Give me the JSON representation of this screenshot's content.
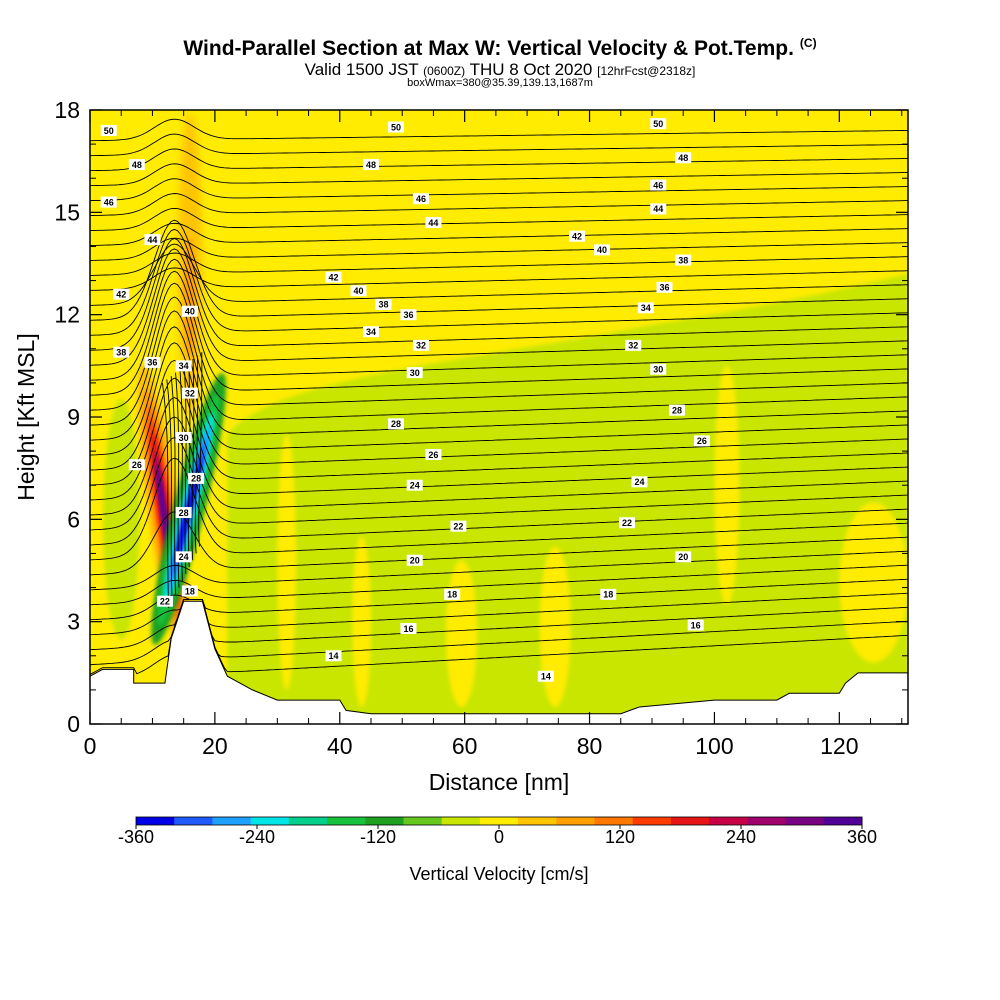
{
  "title": {
    "main": "Wind-Parallel Section at Max W: Vertical Velocity & Pot.Temp.",
    "copyright": "(C)",
    "valid_prefix": "Valid 1500 JST",
    "valid_zulu": "(0600Z)",
    "valid_date": "THU 8 Oct 2020",
    "forecast": "[12hrFcst@2318z]",
    "box_info": "boxWmax=380@35.39,139.13,1687m"
  },
  "chart_data": {
    "type": "heatmap",
    "xlabel": "Distance [nm]",
    "ylabel": "Height [Kft MSL]",
    "xlim": [
      0,
      131
    ],
    "ylim": [
      0,
      18
    ],
    "x_ticks": [
      0,
      20,
      40,
      60,
      80,
      100,
      120
    ],
    "y_ticks": [
      0,
      3,
      6,
      9,
      12,
      15,
      18
    ],
    "colorbar": {
      "label": "Vertical Velocity [cm/s]",
      "range": [
        -360,
        360
      ],
      "tick_values": [
        -360,
        -240,
        -120,
        0,
        120,
        240,
        360
      ],
      "colors": [
        "#0000e6",
        "#1e5aff",
        "#1fa0ff",
        "#00e5e5",
        "#00d08a",
        "#19c23c",
        "#1fa020",
        "#66c81e",
        "#c8e600",
        "#ffec00",
        "#ffc400",
        "#ffa000",
        "#ff7800",
        "#ff3c00",
        "#e61414",
        "#c80046",
        "#a0006e",
        "#780082",
        "#500096"
      ]
    },
    "terrain": [
      [
        0,
        1.4
      ],
      [
        2,
        1.6
      ],
      [
        7,
        1.6
      ],
      [
        7,
        1.2
      ],
      [
        12,
        1.2
      ],
      [
        13,
        2.5
      ],
      [
        15,
        3.6
      ],
      [
        18,
        3.6
      ],
      [
        20,
        2.2
      ],
      [
        22,
        1.4
      ],
      [
        24,
        1.2
      ],
      [
        26,
        1.0
      ],
      [
        30,
        0.7
      ],
      [
        40,
        0.7
      ],
      [
        41,
        0.4
      ],
      [
        45,
        0.3
      ],
      [
        55,
        0.3
      ],
      [
        65,
        0.3
      ],
      [
        85,
        0.3
      ],
      [
        88,
        0.5
      ],
      [
        100,
        0.7
      ],
      [
        110,
        0.7
      ],
      [
        112,
        0.9
      ],
      [
        120,
        0.9
      ],
      [
        121,
        1.2
      ],
      [
        123,
        1.5
      ],
      [
        131,
        1.5
      ]
    ],
    "theta_levels": [
      14,
      16,
      18,
      20,
      22,
      24,
      26,
      28,
      30,
      32,
      34,
      36,
      38,
      40,
      42,
      44,
      46,
      48,
      50
    ],
    "theta_contour_labels": [
      {
        "text": "50",
        "x": 3,
        "y": 17.4
      },
      {
        "text": "50",
        "x": 49,
        "y": 17.5
      },
      {
        "text": "50",
        "x": 91,
        "y": 17.6
      },
      {
        "text": "48",
        "x": 7.5,
        "y": 16.4
      },
      {
        "text": "48",
        "x": 45,
        "y": 16.4
      },
      {
        "text": "48",
        "x": 95,
        "y": 16.6
      },
      {
        "text": "46",
        "x": 3,
        "y": 15.3
      },
      {
        "text": "46",
        "x": 53,
        "y": 15.4
      },
      {
        "text": "46",
        "x": 91,
        "y": 15.8
      },
      {
        "text": "44",
        "x": 10,
        "y": 14.2
      },
      {
        "text": "44",
        "x": 55,
        "y": 14.7
      },
      {
        "text": "44",
        "x": 91,
        "y": 15.1
      },
      {
        "text": "42",
        "x": 5,
        "y": 12.6
      },
      {
        "text": "42",
        "x": 39,
        "y": 13.1
      },
      {
        "text": "42",
        "x": 78,
        "y": 14.3
      },
      {
        "text": "40",
        "x": 16,
        "y": 12.1
      },
      {
        "text": "40",
        "x": 43,
        "y": 12.7
      },
      {
        "text": "40",
        "x": 82,
        "y": 13.9
      },
      {
        "text": "38",
        "x": 5,
        "y": 10.9
      },
      {
        "text": "38",
        "x": 47,
        "y": 12.3
      },
      {
        "text": "38",
        "x": 95,
        "y": 13.6
      },
      {
        "text": "36",
        "x": 10,
        "y": 10.6
      },
      {
        "text": "36",
        "x": 51,
        "y": 12.0
      },
      {
        "text": "36",
        "x": 92,
        "y": 12.8
      },
      {
        "text": "34",
        "x": 15,
        "y": 10.5
      },
      {
        "text": "34",
        "x": 45,
        "y": 11.5
      },
      {
        "text": "34",
        "x": 89,
        "y": 12.2
      },
      {
        "text": "32",
        "x": 16,
        "y": 9.7
      },
      {
        "text": "32",
        "x": 53,
        "y": 11.1
      },
      {
        "text": "32",
        "x": 87,
        "y": 11.1
      },
      {
        "text": "30",
        "x": 15,
        "y": 8.4
      },
      {
        "text": "30",
        "x": 52,
        "y": 10.3
      },
      {
        "text": "30",
        "x": 91,
        "y": 10.4
      },
      {
        "text": "28",
        "x": 17,
        "y": 7.2
      },
      {
        "text": "28",
        "x": 49,
        "y": 8.8
      },
      {
        "text": "28",
        "x": 94,
        "y": 9.2
      },
      {
        "text": "26",
        "x": 7.5,
        "y": 7.6
      },
      {
        "text": "26",
        "x": 55,
        "y": 7.9
      },
      {
        "text": "26",
        "x": 98,
        "y": 8.3
      },
      {
        "text": "28",
        "x": 15,
        "y": 6.2
      },
      {
        "text": "24",
        "x": 52,
        "y": 7.0
      },
      {
        "text": "24",
        "x": 88,
        "y": 7.1
      },
      {
        "text": "24",
        "x": 15,
        "y": 4.9
      },
      {
        "text": "22",
        "x": 59,
        "y": 5.8
      },
      {
        "text": "22",
        "x": 86,
        "y": 5.9
      },
      {
        "text": "22",
        "x": 12,
        "y": 3.6
      },
      {
        "text": "20",
        "x": 52,
        "y": 4.8
      },
      {
        "text": "20",
        "x": 95,
        "y": 4.9
      },
      {
        "text": "18",
        "x": 16,
        "y": 3.9
      },
      {
        "text": "18",
        "x": 58,
        "y": 3.8
      },
      {
        "text": "18",
        "x": 83,
        "y": 3.8
      },
      {
        "text": "16",
        "x": 51,
        "y": 2.8
      },
      {
        "text": "16",
        "x": 97,
        "y": 2.9
      },
      {
        "text": "14",
        "x": 39,
        "y": 2.0
      },
      {
        "text": "14",
        "x": 73,
        "y": 1.4
      }
    ]
  }
}
